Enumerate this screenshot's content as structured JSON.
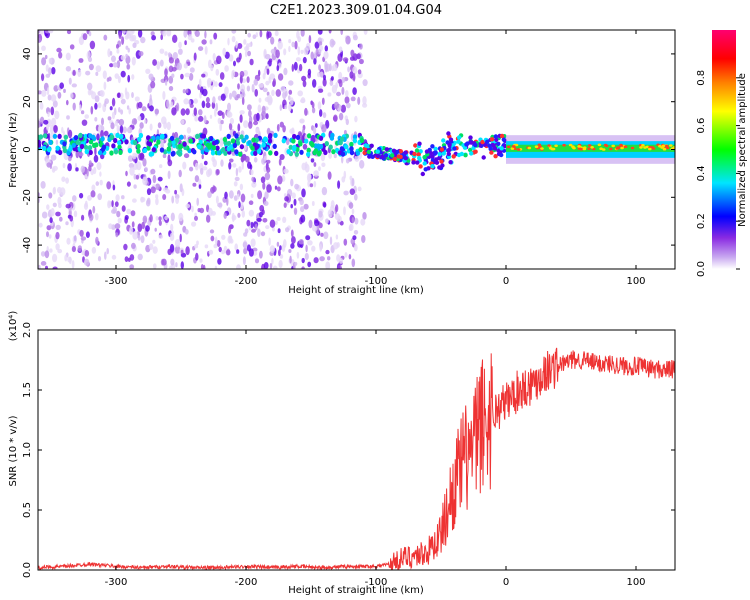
{
  "title": "C2E1.2023.309.01.04.G04",
  "chart_data": [
    {
      "type": "heatmap",
      "xlabel": "Height of straight line (km)",
      "ylabel": "Frequency (Hz)",
      "xlim": [
        -360,
        130
      ],
      "ylim": [
        -50,
        50
      ],
      "xticks": [
        -300,
        -200,
        -100,
        0,
        100
      ],
      "yticks": [
        -40,
        -20,
        0,
        20,
        40
      ],
      "colorbar": {
        "label": "Normalized spectral amplitude",
        "range": [
          0,
          1
        ],
        "ticks": [
          "0.0",
          "0.2",
          "0.4",
          "0.6",
          "0.8"
        ],
        "colors": [
          "#ffffff",
          "#c8a8f0",
          "#8a2be2",
          "#0000ff",
          "#00e5ff",
          "#00ff00",
          "#ffff00",
          "#ff8000",
          "#ff0000",
          "#ff00a0"
        ]
      },
      "grid": false,
      "description_values": {
        "scatter_region_x": [
          -360,
          -110
        ],
        "main_band_frequency_hz": 0,
        "strong_band_x": [
          0,
          130
        ]
      }
    },
    {
      "type": "line",
      "xlabel": "Height of straight line (km)",
      "ylabel": "SNR (10 * v/v)",
      "scale_note": "(x10⁴)",
      "xlim": [
        -360,
        130
      ],
      "ylim": [
        0,
        2.0
      ],
      "xticks": [
        -300,
        -200,
        -100,
        0,
        100
      ],
      "yticks": [
        "0.0",
        "0.5",
        "1.0",
        "1.5",
        "2.0"
      ],
      "color": "#ee3333",
      "grid": false,
      "points": [
        [
          -360,
          0.02
        ],
        [
          -340,
          0.03
        ],
        [
          -320,
          0.05
        ],
        [
          -300,
          0.03
        ],
        [
          -280,
          0.02
        ],
        [
          -260,
          0.03
        ],
        [
          -240,
          0.02
        ],
        [
          -220,
          0.02
        ],
        [
          -200,
          0.03
        ],
        [
          -180,
          0.02
        ],
        [
          -160,
          0.03
        ],
        [
          -140,
          0.02
        ],
        [
          -120,
          0.03
        ],
        [
          -100,
          0.03
        ],
        [
          -90,
          0.05
        ],
        [
          -80,
          0.1
        ],
        [
          -70,
          0.12
        ],
        [
          -60,
          0.15
        ],
        [
          -50,
          0.3
        ],
        [
          -45,
          0.5
        ],
        [
          -40,
          0.7
        ],
        [
          -35,
          0.85
        ],
        [
          -30,
          0.95
        ],
        [
          -25,
          1.0
        ],
        [
          -20,
          1.2
        ],
        [
          -15,
          1.25
        ],
        [
          -10,
          1.3
        ],
        [
          -5,
          1.35
        ],
        [
          0,
          1.4
        ],
        [
          10,
          1.5
        ],
        [
          20,
          1.55
        ],
        [
          30,
          1.65
        ],
        [
          40,
          1.7
        ],
        [
          50,
          1.75
        ],
        [
          60,
          1.75
        ],
        [
          70,
          1.72
        ],
        [
          80,
          1.72
        ],
        [
          90,
          1.7
        ],
        [
          100,
          1.7
        ],
        [
          110,
          1.68
        ],
        [
          120,
          1.67
        ],
        [
          130,
          1.67
        ]
      ]
    }
  ]
}
